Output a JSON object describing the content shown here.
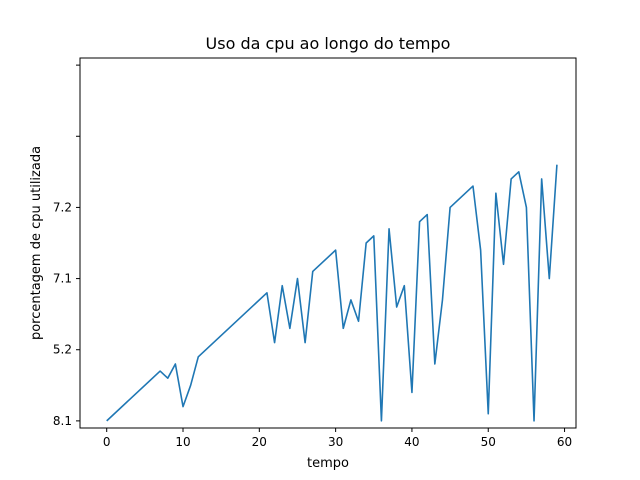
{
  "chart_data": {
    "type": "line",
    "title": "Uso da cpu ao longo do tempo",
    "xlabel": "tempo",
    "ylabel": "porcentagem de cpu utilizada",
    "xlim": [
      -3.5,
      61.5
    ],
    "ylim": [
      -0.1,
      5.1
    ],
    "x_ticks": [
      0,
      10,
      20,
      30,
      40,
      50,
      60
    ],
    "y_ticks": [
      {
        "value": 0,
        "label": "8.1"
      },
      {
        "value": 1,
        "label": "5.2"
      },
      {
        "value": 2,
        "label": "7.1"
      },
      {
        "value": 3,
        "label": "7.2"
      },
      {
        "value": 4,
        "label": ""
      },
      {
        "value": 5,
        "label": ""
      }
    ],
    "grid": false,
    "line_color": "#1f77b4",
    "series": [
      {
        "name": "",
        "points": [
          [
            0,
            0.0
          ],
          [
            7,
            0.7
          ],
          [
            8,
            0.6
          ],
          [
            9,
            0.8
          ],
          [
            10,
            0.2
          ],
          [
            11,
            0.5
          ],
          [
            12,
            0.9
          ],
          [
            21,
            1.8
          ],
          [
            22,
            1.1
          ],
          [
            23,
            1.9
          ],
          [
            24,
            1.3
          ],
          [
            25,
            2.0
          ],
          [
            26,
            1.1
          ],
          [
            27,
            2.1
          ],
          [
            30,
            2.4
          ],
          [
            31,
            1.3
          ],
          [
            32,
            1.7
          ],
          [
            33,
            1.4
          ],
          [
            34,
            2.5
          ],
          [
            35,
            2.6
          ],
          [
            36,
            0.0
          ],
          [
            37,
            2.7
          ],
          [
            38,
            1.6
          ],
          [
            39,
            1.9
          ],
          [
            40,
            0.4
          ],
          [
            41,
            2.8
          ],
          [
            42,
            2.9
          ],
          [
            43,
            0.8
          ],
          [
            44,
            1.7
          ],
          [
            45,
            3.0
          ],
          [
            48,
            3.3
          ],
          [
            49,
            2.4
          ],
          [
            50,
            0.1
          ],
          [
            51,
            3.2
          ],
          [
            52,
            2.2
          ],
          [
            53,
            3.4
          ],
          [
            54,
            3.5
          ],
          [
            55,
            3.0
          ],
          [
            56,
            0.0
          ],
          [
            57,
            3.4
          ],
          [
            58,
            2.0
          ],
          [
            59,
            3.6
          ]
        ]
      }
    ]
  }
}
